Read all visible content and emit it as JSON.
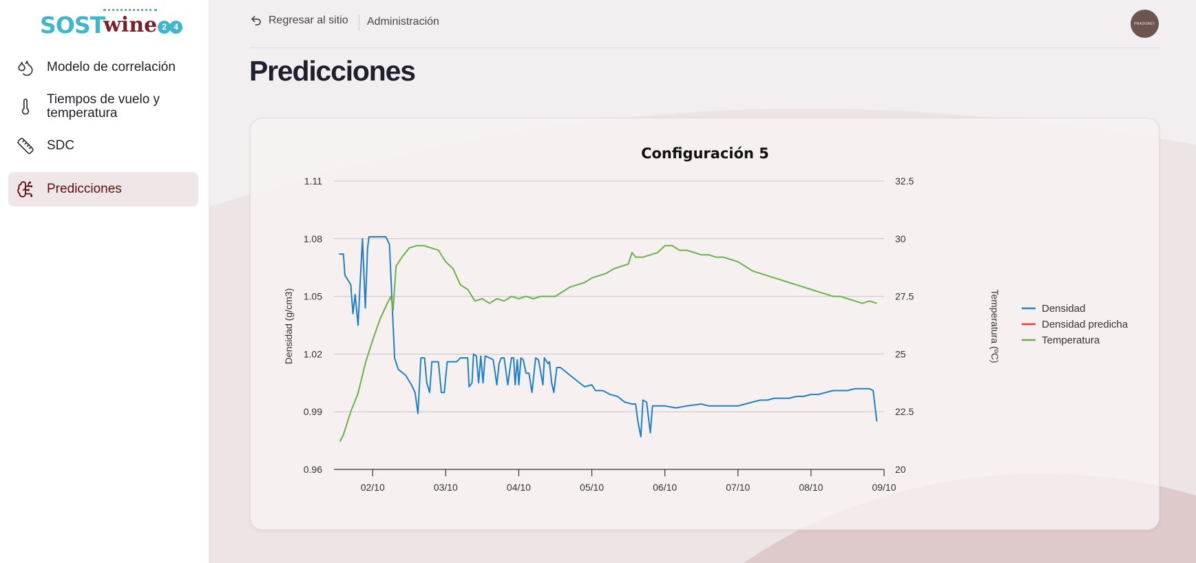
{
  "logo": {
    "part1": "SOST",
    "part2": "wine",
    "num1": "2",
    "num2": "4"
  },
  "sidebar": {
    "items": [
      {
        "label": "Modelo de correlación",
        "icon": "droplets-icon",
        "active": false
      },
      {
        "label": "Tiempos de vuelo y temperatura",
        "icon": "thermometer-icon",
        "active": false
      },
      {
        "label": "SDC",
        "icon": "ruler-icon",
        "active": false
      },
      {
        "label": "Predicciones",
        "icon": "brain-circuit-icon",
        "active": true
      }
    ]
  },
  "header": {
    "back_label": "Regresar al sitio",
    "admin_label": "Administración",
    "avatar_text": "PRADOREY"
  },
  "page": {
    "title": "Predicciones"
  },
  "colors": {
    "accent": "#5d0e14",
    "density": "#1f7fc4",
    "predicted": "#e8392b",
    "temperature": "#6ab04c"
  },
  "chart_data": {
    "type": "line",
    "title": "Configuración 5",
    "ylabel": "Densidad (g/cm3)",
    "y2label": "Temperatura (ºC)",
    "ylim": [
      0.96,
      1.11
    ],
    "y2lim": [
      20,
      32.5
    ],
    "yticks": [
      "0.96",
      "0.99",
      "1.02",
      "1.05",
      "1.08",
      "1.11"
    ],
    "y2ticks": [
      "20",
      "22.5",
      "25",
      "27.5",
      "30",
      "32.5"
    ],
    "xlim": [
      1.47,
      9.0
    ],
    "xticks": [
      {
        "x": 2,
        "label": "02/10"
      },
      {
        "x": 3,
        "label": "03/10"
      },
      {
        "x": 4,
        "label": "04/10"
      },
      {
        "x": 5,
        "label": "05/10"
      },
      {
        "x": 6,
        "label": "06/10"
      },
      {
        "x": 7,
        "label": "07/10"
      },
      {
        "x": 8,
        "label": "08/10"
      },
      {
        "x": 9,
        "label": "09/10"
      }
    ],
    "grid": true,
    "legend_position": "right",
    "series": [
      {
        "name": "Densidad",
        "axis": "left",
        "points": [
          [
            1.54,
            1.072
          ],
          [
            1.6,
            1.072
          ],
          [
            1.62,
            1.061
          ],
          [
            1.67,
            1.058
          ],
          [
            1.7,
            1.056
          ],
          [
            1.73,
            1.041
          ],
          [
            1.76,
            1.051
          ],
          [
            1.8,
            1.035
          ],
          [
            1.83,
            1.058
          ],
          [
            1.86,
            1.08
          ],
          [
            1.9,
            1.044
          ],
          [
            1.93,
            1.075
          ],
          [
            1.95,
            1.081
          ],
          [
            2.0,
            1.081
          ],
          [
            2.1,
            1.081
          ],
          [
            2.18,
            1.081
          ],
          [
            2.23,
            1.077
          ],
          [
            2.3,
            1.018
          ],
          [
            2.35,
            1.012
          ],
          [
            2.45,
            1.009
          ],
          [
            2.53,
            1.004
          ],
          [
            2.58,
            1.0
          ],
          [
            2.62,
            0.989
          ],
          [
            2.66,
            1.018
          ],
          [
            2.71,
            1.018
          ],
          [
            2.74,
            1.005
          ],
          [
            2.78,
            1.0
          ],
          [
            2.81,
            1.016
          ],
          [
            2.9,
            1.016
          ],
          [
            2.94,
            1.0
          ],
          [
            2.98,
            1.0
          ],
          [
            3.02,
            1.016
          ],
          [
            3.15,
            1.016
          ],
          [
            3.2,
            1.018
          ],
          [
            3.3,
            1.018
          ],
          [
            3.32,
            1.003
          ],
          [
            3.36,
            1.005
          ],
          [
            3.38,
            1.02
          ],
          [
            3.42,
            1.019
          ],
          [
            3.45,
            1.005
          ],
          [
            3.48,
            1.019
          ],
          [
            3.51,
            1.005
          ],
          [
            3.54,
            1.019
          ],
          [
            3.6,
            1.018
          ],
          [
            3.65,
            1.017
          ],
          [
            3.7,
            1.004
          ],
          [
            3.73,
            1.015
          ],
          [
            3.76,
            1.018
          ],
          [
            3.8,
            1.018
          ],
          [
            3.85,
            1.004
          ],
          [
            3.9,
            1.018
          ],
          [
            3.93,
            1.018
          ],
          [
            3.95,
            1.004
          ],
          [
            3.98,
            1.017
          ],
          [
            4.0,
            1.004
          ],
          [
            4.03,
            1.018
          ],
          [
            4.06,
            1.017
          ],
          [
            4.1,
            1.01
          ],
          [
            4.14,
            1.01
          ],
          [
            4.18,
            1.0
          ],
          [
            4.23,
            1.018
          ],
          [
            4.27,
            1.017
          ],
          [
            4.33,
            1.004
          ],
          [
            4.35,
            1.018
          ],
          [
            4.4,
            1.015
          ],
          [
            4.42,
            1.016
          ],
          [
            4.45,
            1.005
          ],
          [
            4.48,
            1.0
          ],
          [
            4.52,
            1.013
          ],
          [
            4.57,
            1.013
          ],
          [
            4.7,
            1.009
          ],
          [
            4.8,
            1.006
          ],
          [
            4.9,
            1.003
          ],
          [
            5.0,
            1.004
          ],
          [
            5.05,
            1.001
          ],
          [
            5.15,
            1.001
          ],
          [
            5.25,
            0.999
          ],
          [
            5.35,
            0.998
          ],
          [
            5.45,
            0.995
          ],
          [
            5.55,
            0.994
          ],
          [
            5.6,
            0.994
          ],
          [
            5.63,
            0.985
          ],
          [
            5.67,
            0.977
          ],
          [
            5.7,
            0.996
          ],
          [
            5.75,
            0.995
          ],
          [
            5.8,
            0.979
          ],
          [
            5.83,
            0.993
          ],
          [
            5.9,
            0.993
          ],
          [
            6.0,
            0.993
          ],
          [
            6.15,
            0.992
          ],
          [
            6.3,
            0.993
          ],
          [
            6.5,
            0.994
          ],
          [
            6.6,
            0.993
          ],
          [
            7.0,
            0.993
          ],
          [
            7.1,
            0.994
          ],
          [
            7.2,
            0.995
          ],
          [
            7.3,
            0.996
          ],
          [
            7.4,
            0.996
          ],
          [
            7.5,
            0.997
          ],
          [
            7.6,
            0.997
          ],
          [
            7.7,
            0.997
          ],
          [
            7.8,
            0.998
          ],
          [
            7.9,
            0.998
          ],
          [
            8.0,
            0.999
          ],
          [
            8.1,
            0.999
          ],
          [
            8.2,
            1.0
          ],
          [
            8.3,
            1.001
          ],
          [
            8.4,
            1.001
          ],
          [
            8.5,
            1.001
          ],
          [
            8.6,
            1.002
          ],
          [
            8.7,
            1.002
          ],
          [
            8.8,
            1.002
          ],
          [
            8.85,
            1.001
          ],
          [
            8.9,
            0.985
          ]
        ]
      },
      {
        "name": "Densidad predicha",
        "axis": "left",
        "points": []
      },
      {
        "name": "Temperatura",
        "axis": "right",
        "points": [
          [
            1.55,
            21.2
          ],
          [
            1.6,
            21.5
          ],
          [
            1.7,
            22.5
          ],
          [
            1.8,
            23.3
          ],
          [
            1.9,
            24.6
          ],
          [
            2.0,
            25.6
          ],
          [
            2.1,
            26.5
          ],
          [
            2.2,
            27.2
          ],
          [
            2.25,
            27.5
          ],
          [
            2.28,
            26.9
          ],
          [
            2.32,
            28.8
          ],
          [
            2.4,
            29.2
          ],
          [
            2.5,
            29.6
          ],
          [
            2.6,
            29.7
          ],
          [
            2.7,
            29.7
          ],
          [
            2.8,
            29.6
          ],
          [
            2.9,
            29.5
          ],
          [
            3.0,
            29.0
          ],
          [
            3.1,
            28.7
          ],
          [
            3.2,
            28.0
          ],
          [
            3.3,
            27.8
          ],
          [
            3.4,
            27.3
          ],
          [
            3.5,
            27.4
          ],
          [
            3.6,
            27.2
          ],
          [
            3.7,
            27.4
          ],
          [
            3.8,
            27.3
          ],
          [
            3.9,
            27.5
          ],
          [
            4.0,
            27.4
          ],
          [
            4.1,
            27.5
          ],
          [
            4.2,
            27.4
          ],
          [
            4.3,
            27.5
          ],
          [
            4.4,
            27.5
          ],
          [
            4.5,
            27.5
          ],
          [
            4.6,
            27.7
          ],
          [
            4.7,
            27.9
          ],
          [
            4.8,
            28.0
          ],
          [
            4.9,
            28.1
          ],
          [
            5.0,
            28.3
          ],
          [
            5.1,
            28.4
          ],
          [
            5.2,
            28.5
          ],
          [
            5.3,
            28.7
          ],
          [
            5.4,
            28.8
          ],
          [
            5.5,
            28.9
          ],
          [
            5.55,
            29.4
          ],
          [
            5.6,
            29.2
          ],
          [
            5.7,
            29.2
          ],
          [
            5.8,
            29.3
          ],
          [
            5.9,
            29.4
          ],
          [
            6.0,
            29.7
          ],
          [
            6.1,
            29.7
          ],
          [
            6.2,
            29.5
          ],
          [
            6.3,
            29.5
          ],
          [
            6.4,
            29.4
          ],
          [
            6.5,
            29.3
          ],
          [
            6.6,
            29.3
          ],
          [
            6.7,
            29.2
          ],
          [
            6.8,
            29.2
          ],
          [
            6.9,
            29.1
          ],
          [
            7.0,
            29.0
          ],
          [
            7.1,
            28.8
          ],
          [
            7.2,
            28.6
          ],
          [
            7.3,
            28.5
          ],
          [
            7.4,
            28.4
          ],
          [
            7.5,
            28.3
          ],
          [
            7.6,
            28.2
          ],
          [
            7.7,
            28.1
          ],
          [
            7.8,
            28.0
          ],
          [
            7.9,
            27.9
          ],
          [
            8.0,
            27.8
          ],
          [
            8.1,
            27.7
          ],
          [
            8.2,
            27.6
          ],
          [
            8.3,
            27.5
          ],
          [
            8.4,
            27.5
          ],
          [
            8.5,
            27.4
          ],
          [
            8.6,
            27.3
          ],
          [
            8.7,
            27.2
          ],
          [
            8.8,
            27.3
          ],
          [
            8.9,
            27.2
          ]
        ]
      }
    ]
  }
}
